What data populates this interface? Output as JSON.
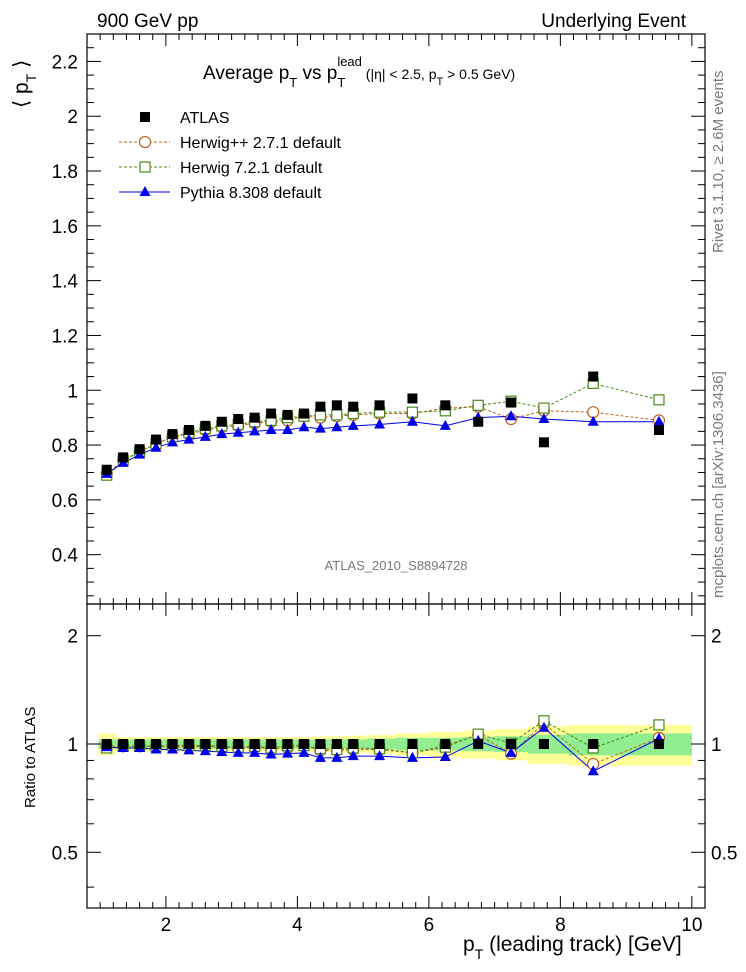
{
  "header": {
    "left": "900 GeV pp",
    "right": "Underlying Event"
  },
  "side": {
    "rivet": "Rivet 3.1.10, ≥ 2.6M events",
    "mcplots": "mcplots.cern.ch [arXiv:1306.3436]"
  },
  "chart_data": {
    "type": "scatter",
    "title": "Average p_T vs p_T^lead (|η| < 2.5, p_T > 0.5 GeV)",
    "analysis_label": "ATLAS_2010_S8894728",
    "xlabel": "p_T (leading track) [GeV]",
    "ylabel": "⟨ p_T ⟩",
    "ratio_ylabel": "Ratio to ATLAS",
    "xlim": [
      0.8,
      10.2
    ],
    "ylim": [
      0.22,
      2.3
    ],
    "ratio_ylim": [
      0.35,
      2.45
    ],
    "xticks": [
      2,
      4,
      6,
      8,
      10
    ],
    "yticks": [
      0.4,
      0.6,
      0.8,
      1.0,
      1.2,
      1.4,
      1.6,
      1.8,
      2.0,
      2.2
    ],
    "ytick_labels": [
      "0.4",
      "0.6",
      "0.8",
      "1",
      "1.2",
      "1.4",
      "1.6",
      "1.8",
      "2",
      "2.2"
    ],
    "ratio_yticks": [
      0.5,
      1.0,
      2.0
    ],
    "ratio_ytick_labels": [
      "0.5",
      "1",
      "2"
    ],
    "legend_position": "top-left",
    "x": [
      1.1,
      1.35,
      1.6,
      1.85,
      2.1,
      2.35,
      2.6,
      2.85,
      3.1,
      3.35,
      3.6,
      3.85,
      4.1,
      4.35,
      4.6,
      4.85,
      5.25,
      5.75,
      6.25,
      6.75,
      7.25,
      7.75,
      8.5,
      9.5
    ],
    "series": [
      {
        "name": "ATLAS",
        "marker": "square-filled",
        "color": "#000000",
        "values": [
          0.71,
          0.755,
          0.785,
          0.82,
          0.84,
          0.855,
          0.87,
          0.885,
          0.895,
          0.9,
          0.915,
          0.91,
          0.915,
          0.94,
          0.945,
          0.94,
          0.945,
          0.97,
          0.945,
          0.885,
          0.955,
          0.81,
          1.05,
          0.855
        ],
        "ratio": [
          1.0,
          1.0,
          1.0,
          1.0,
          1.0,
          1.0,
          1.0,
          1.0,
          1.0,
          1.0,
          1.0,
          1.0,
          1.0,
          1.0,
          1.0,
          1.0,
          1.0,
          1.0,
          1.0,
          1.0,
          1.0,
          1.0,
          1.0,
          1.0
        ]
      },
      {
        "name": "Herwig++ 2.7.1 default",
        "marker": "circle-open",
        "color": "#c06020",
        "values": [
          0.695,
          0.745,
          0.775,
          0.805,
          0.83,
          0.84,
          0.855,
          0.865,
          0.87,
          0.88,
          0.885,
          0.89,
          0.905,
          0.9,
          0.905,
          0.91,
          0.915,
          0.915,
          0.935,
          0.94,
          0.895,
          0.925,
          0.92,
          0.89
        ],
        "ratio": [
          0.98,
          0.985,
          0.985,
          0.985,
          0.985,
          0.985,
          0.985,
          0.98,
          0.975,
          0.98,
          0.97,
          0.975,
          0.99,
          0.96,
          0.96,
          0.965,
          0.965,
          0.945,
          0.99,
          1.06,
          0.94,
          1.14,
          0.88,
          1.04
        ]
      },
      {
        "name": "Herwig 7.2.1 default",
        "marker": "square-open",
        "color": "#4a8a1c",
        "values": [
          0.69,
          0.745,
          0.775,
          0.805,
          0.83,
          0.845,
          0.86,
          0.87,
          0.875,
          0.885,
          0.89,
          0.9,
          0.905,
          0.91,
          0.91,
          0.915,
          0.92,
          0.92,
          0.925,
          0.945,
          0.96,
          0.935,
          1.025,
          0.965
        ],
        "ratio": [
          0.975,
          0.985,
          0.985,
          0.985,
          0.99,
          0.99,
          0.99,
          0.985,
          0.98,
          0.985,
          0.975,
          0.99,
          0.99,
          0.97,
          0.965,
          0.975,
          0.97,
          0.945,
          0.98,
          1.065,
          1.005,
          1.16,
          0.975,
          1.13
        ]
      },
      {
        "name": "Pythia 8.308 default",
        "marker": "triangle-filled",
        "color": "#0000ee",
        "values": [
          0.695,
          0.735,
          0.765,
          0.79,
          0.81,
          0.82,
          0.83,
          0.84,
          0.845,
          0.85,
          0.855,
          0.855,
          0.865,
          0.86,
          0.865,
          0.87,
          0.875,
          0.885,
          0.87,
          0.9,
          0.905,
          0.895,
          0.885,
          0.885
        ],
        "ratio": [
          0.98,
          0.975,
          0.975,
          0.965,
          0.965,
          0.96,
          0.955,
          0.95,
          0.945,
          0.945,
          0.935,
          0.94,
          0.945,
          0.915,
          0.915,
          0.925,
          0.925,
          0.915,
          0.92,
          1.02,
          0.945,
          1.11,
          0.84,
          1.035
        ]
      }
    ],
    "ratio_band_inner": [
      0.03,
      0.03,
      0.03,
      0.03,
      0.03,
      0.03,
      0.03,
      0.03,
      0.03,
      0.03,
      0.03,
      0.03,
      0.03,
      0.03,
      0.03,
      0.03,
      0.035,
      0.04,
      0.04,
      0.045,
      0.05,
      0.06,
      0.07,
      0.07
    ],
    "ratio_band_outer": [
      0.07,
      0.045,
      0.045,
      0.045,
      0.045,
      0.045,
      0.045,
      0.045,
      0.045,
      0.045,
      0.045,
      0.045,
      0.045,
      0.05,
      0.05,
      0.055,
      0.06,
      0.07,
      0.08,
      0.09,
      0.1,
      0.12,
      0.13,
      0.13
    ]
  },
  "colors": {
    "band_inner": "#90ee90",
    "band_outer": "#ffff99"
  }
}
